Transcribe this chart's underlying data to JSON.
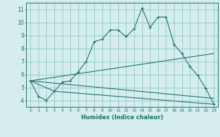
{
  "xlabel": "Humidex (Indice chaleur)",
  "background_color": "#d5eeed",
  "grid_color": "#7fbfbf",
  "line_color": "#1a7070",
  "xlim": [
    -0.5,
    23.5
  ],
  "ylim": [
    3.5,
    11.5
  ],
  "xticks": [
    0,
    1,
    2,
    3,
    4,
    5,
    6,
    7,
    8,
    9,
    10,
    11,
    12,
    13,
    14,
    15,
    16,
    17,
    18,
    19,
    20,
    21,
    22,
    23
  ],
  "yticks": [
    4,
    5,
    6,
    7,
    8,
    9,
    10,
    11
  ],
  "line1_x": [
    0,
    1,
    2,
    3,
    4,
    5,
    6,
    7,
    8,
    9,
    10,
    11,
    12,
    13,
    14,
    15,
    16,
    17,
    18,
    19,
    20,
    21,
    22,
    23
  ],
  "line1_y": [
    5.5,
    4.3,
    4.0,
    4.7,
    5.4,
    5.5,
    6.2,
    7.0,
    8.5,
    8.7,
    9.4,
    9.4,
    8.9,
    9.5,
    11.1,
    9.6,
    10.4,
    10.4,
    8.3,
    7.6,
    6.6,
    5.9,
    4.9,
    3.7
  ],
  "line2_x": [
    0,
    3,
    23
  ],
  "line2_y": [
    5.5,
    4.7,
    3.7
  ],
  "line3_x": [
    0,
    23
  ],
  "line3_y": [
    5.5,
    7.6
  ],
  "line4_x": [
    0,
    23
  ],
  "line4_y": [
    5.5,
    4.15
  ],
  "xtick_fontsize": 4.5,
  "ytick_fontsize": 5.5,
  "xlabel_fontsize": 6.0
}
